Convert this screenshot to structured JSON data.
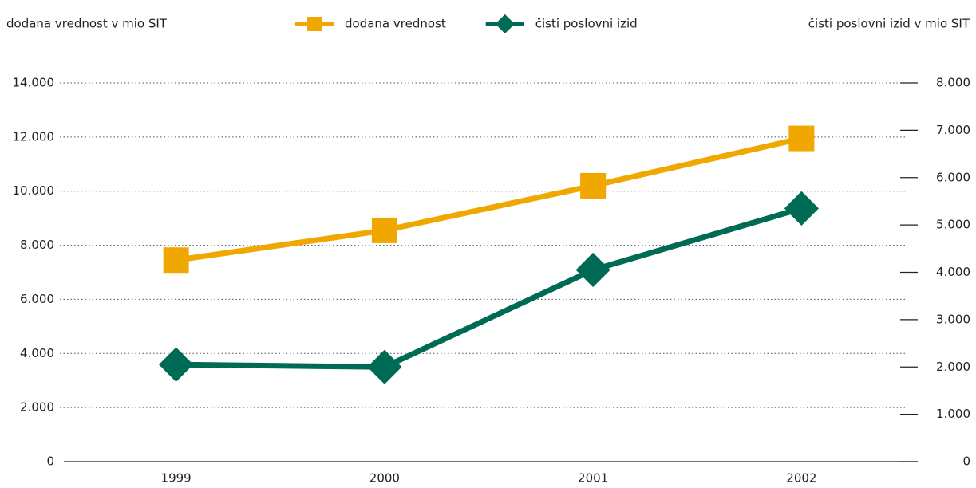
{
  "chart_data": {
    "type": "line",
    "y_label": "dodana vrednost v mio SIT",
    "y2_label": "čisti poslovni izid v mio SIT",
    "categories": [
      "1999",
      "2000",
      "2001",
      "2002"
    ],
    "series": [
      {
        "name": "dodana vrednost",
        "color": "#f0a800",
        "marker": "square",
        "values": [
          7450,
          8550,
          10200,
          11950
        ]
      },
      {
        "name": "čisti poslovni izid",
        "color": "#006b54",
        "marker": "diamond",
        "axis": "y2",
        "values": [
          2050,
          2000,
          4050,
          5350
        ]
      }
    ],
    "ylim": [
      0,
      14000
    ],
    "yticks": [
      0,
      {
        "value": 2000,
        "label": "2.000"
      },
      {
        "value": 4000,
        "label": "4.000"
      },
      {
        "value": 6000,
        "label": "6.000"
      },
      {
        "value": 8000,
        "label": "8.000"
      },
      {
        "value": 10000,
        "label": "10.000"
      },
      {
        "value": 12000,
        "label": "12.000"
      },
      {
        "value": 14000,
        "label": "14.000"
      }
    ],
    "y2lim": [
      0,
      8000
    ],
    "y2ticks": [
      0,
      {
        "value": 1000,
        "label": "1.000"
      },
      {
        "value": 2000,
        "label": "2.000"
      },
      {
        "value": 3000,
        "label": "3.000"
      },
      {
        "value": 4000,
        "label": "4.000"
      },
      {
        "value": 5000,
        "label": "5.000"
      },
      {
        "value": 6000,
        "label": "6.000"
      },
      {
        "value": 7000,
        "label": "7.000"
      },
      {
        "value": 8000,
        "label": "8.000"
      }
    ],
    "grid": true,
    "legend": "top"
  }
}
